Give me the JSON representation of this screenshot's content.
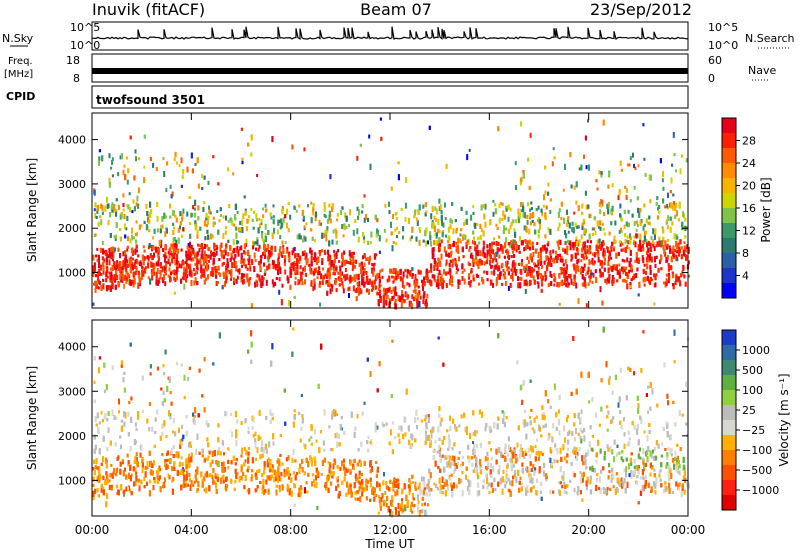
{
  "header": {
    "station": "Inuvik (fitACF)",
    "beam": "Beam 07",
    "date": "23/Sep/2012"
  },
  "nsky_panel": {
    "left_label": "N.Sky",
    "right_label": "N.Search",
    "left_ticks": [
      "10^5",
      "10^0"
    ],
    "right_ticks": [
      "10^5",
      "10^0"
    ]
  },
  "freq_panel": {
    "left_label_line1": "Freq.",
    "left_label_line2": "[MHz]",
    "right_label": "Nave",
    "left_ticks": [
      "18",
      "8"
    ],
    "right_ticks": [
      "60",
      "0"
    ]
  },
  "cpid_panel": {
    "label": "CPID",
    "program": "twofsound 3501"
  },
  "chart_data": [
    {
      "type": "heatmap",
      "title": "Power",
      "ylabel": "Slant Range [km]",
      "ylim": [
        200,
        4600
      ],
      "yticks": [
        1000,
        2000,
        3000,
        4000
      ],
      "xlim": [
        0,
        24
      ],
      "colorbar": {
        "label": "Power [dB]",
        "ticks": [
          "28",
          "24",
          "20",
          "16",
          "12",
          "8",
          "4"
        ],
        "colors": [
          "#e6001a",
          "#ff1f00",
          "#ff5a00",
          "#ff8c00",
          "#f6b400",
          "#cdd400",
          "#7fc44a",
          "#3a9a6a",
          "#2a7a70",
          "#2a5ea8",
          "#1c34cc",
          "#0000ff"
        ]
      },
      "description_regions": [
        {
          "x": [
            0,
            24
          ],
          "y": [
            600,
            1600
          ],
          "value": "high (24-30 dB)"
        },
        {
          "x": [
            0,
            24
          ],
          "y": [
            1700,
            2600
          ],
          "value": "mixed (10-22 dB)"
        }
      ]
    },
    {
      "type": "heatmap",
      "title": "Velocity",
      "ylabel": "Slant Range [km]",
      "ylim": [
        200,
        4600
      ],
      "yticks": [
        1000,
        2000,
        3000,
        4000
      ],
      "xlim": [
        0,
        24
      ],
      "colorbar": {
        "label": "Velocity [m s⁻¹]",
        "ticks": [
          "1000",
          "500",
          "100",
          "25",
          "−25",
          "−100",
          "−500",
          "−1000"
        ],
        "colors": [
          "#1c3cc8",
          "#2d6aa8",
          "#3c8a70",
          "#60b040",
          "#8fd040",
          "#bcbcbc",
          "#d8d8d0",
          "#ffb000",
          "#ff8000",
          "#ff5000",
          "#ff2010",
          "#e00000"
        ]
      },
      "description_regions": [
        {
          "x": [
            0,
            24
          ],
          "y": [
            600,
            1600
          ],
          "value": "-100 to -500 m/s"
        },
        {
          "x": [
            0,
            24
          ],
          "y": [
            1700,
            2600
          ],
          "value": "ground scatter ~0 m/s"
        }
      ]
    }
  ],
  "xaxis": {
    "label": "Time UT",
    "ticks": [
      "00:00",
      "04:00",
      "08:00",
      "12:00",
      "16:00",
      "20:00",
      "00:00"
    ]
  }
}
